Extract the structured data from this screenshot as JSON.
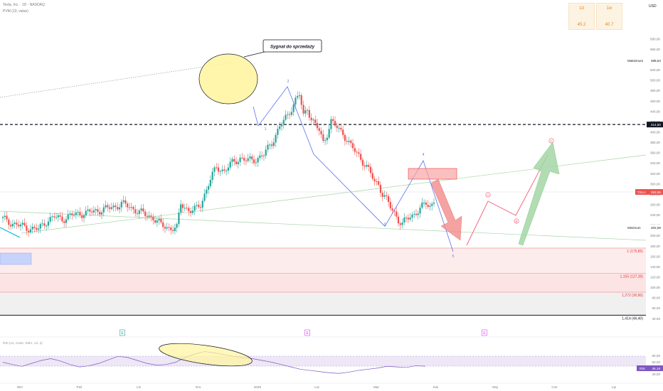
{
  "header": {
    "symbol_line": "Tesla, Inc. · 1D · NASDAQ",
    "indicator_line": "PVM (13, value)",
    "currency": "USD"
  },
  "performance": [
    {
      "period": "1d",
      "sep": "-",
      "value": "45.2"
    },
    {
      "period": "1w",
      "sep": "-",
      "value": "40.7"
    }
  ],
  "annotations": {
    "sell_signal": "Sygnał do sprzedaży",
    "wave_labels": [
      "1",
      "2",
      "3",
      "4",
      "5"
    ],
    "abc_labels": [
      "A",
      "B",
      "C"
    ],
    "event_badges": [
      "E",
      "E",
      "E"
    ]
  },
  "price_tags": {
    "maximum_label": "Maksimum",
    "maximum_value": "488,54",
    "minimum_label": "Minimum",
    "minimum_value": "202,59",
    "level_value": "414,50",
    "ticker": "TSLA",
    "last_value": "263,55"
  },
  "fib_levels": [
    {
      "label": "1 (175,85)",
      "price": 175.85
    },
    {
      "label": "1,155 (127,39)",
      "price": 127.39
    },
    {
      "label": "1,272 (90,80)",
      "price": 90.8
    },
    {
      "label": "1,414 (46,40)",
      "price": 46.4
    }
  ],
  "rsi": {
    "title": "RSI (14, close, SMA, 14, 2)",
    "tag": "RSI",
    "value": "45,19",
    "upper_band": 70,
    "lower_band": 30,
    "ticks": [
      "80,00",
      "60,00",
      "40,00"
    ]
  },
  "x_axis": [
    "Wrz",
    "Paź",
    "Lis",
    "Gru",
    "2025",
    "Lut",
    "Mar",
    "Kwi",
    "Maj",
    "Cze",
    "Lip"
  ],
  "y_axis_ticks": [
    "580,00",
    "560,00",
    "540,00",
    "520,00",
    "500,00",
    "480,00",
    "460,00",
    "440,00",
    "420,00",
    "400,00",
    "380,00",
    "360,00",
    "340,00",
    "320,00",
    "300,00",
    "280,00",
    "260,00",
    "240,00",
    "220,00",
    "200,00",
    "180,00",
    "160,00",
    "140,00",
    "120,00",
    "100,00",
    "80,00",
    "60,00",
    "40,00"
  ],
  "colors": {
    "up": "#26a69a",
    "down": "#ef5350",
    "wave_line": "#5b72f2",
    "abc_line": "#f05d7a",
    "rsi_line": "#7e57c2",
    "highlight": "#fff59d"
  },
  "chart_data": {
    "type": "candlestick",
    "title": "Tesla, Inc. · 1D · NASDAQ",
    "ylim": [
      40,
      580
    ],
    "categories": [
      "Wrz",
      "Paź",
      "Lis",
      "Gru",
      "2025",
      "Lut",
      "Mar",
      "Kwi",
      "Maj",
      "Cze",
      "Lip"
    ],
    "close_path": [
      [
        0,
        232
      ],
      [
        6,
        222
      ],
      [
        12,
        215
      ],
      [
        18,
        212
      ],
      [
        22,
        228
      ],
      [
        26,
        236
      ],
      [
        30,
        232
      ],
      [
        34,
        238
      ],
      [
        38,
        242
      ],
      [
        44,
        245
      ],
      [
        50,
        250
      ],
      [
        56,
        255
      ],
      [
        60,
        262
      ],
      [
        64,
        255
      ],
      [
        68,
        248
      ],
      [
        72,
        240
      ],
      [
        76,
        235
      ],
      [
        80,
        220
      ],
      [
        84,
        215
      ],
      [
        88,
        214
      ],
      [
        90,
        262
      ],
      [
        92,
        255
      ],
      [
        94,
        250
      ],
      [
        96,
        248
      ],
      [
        98,
        252
      ],
      [
        100,
        260
      ],
      [
        104,
        300
      ],
      [
        108,
        332
      ],
      [
        112,
        325
      ],
      [
        116,
        340
      ],
      [
        120,
        350
      ],
      [
        124,
        344
      ],
      [
        128,
        348
      ],
      [
        132,
        356
      ],
      [
        136,
        380
      ],
      [
        140,
        410
      ],
      [
        144,
        432
      ],
      [
        148,
        462
      ],
      [
        150,
        472
      ],
      [
        152,
        430
      ],
      [
        154,
        448
      ],
      [
        156,
        425
      ],
      [
        160,
        402
      ],
      [
        162,
        380
      ],
      [
        164,
        398
      ],
      [
        166,
        420
      ],
      [
        168,
        412
      ],
      [
        170,
        405
      ],
      [
        172,
        398
      ],
      [
        174,
        385
      ],
      [
        176,
        372
      ],
      [
        180,
        355
      ],
      [
        184,
        332
      ],
      [
        188,
        305
      ],
      [
        190,
        300
      ],
      [
        192,
        280
      ],
      [
        194,
        268
      ],
      [
        196,
        255
      ],
      [
        198,
        245
      ],
      [
        200,
        230
      ],
      [
        202,
        222
      ],
      [
        204,
        230
      ],
      [
        206,
        238
      ],
      [
        208,
        242
      ],
      [
        210,
        248
      ],
      [
        212,
        255
      ],
      [
        214,
        262
      ],
      [
        216,
        258
      ],
      [
        218,
        263.55
      ]
    ],
    "waves": {
      "1": [
        363,
        412
      ],
      "2": [
        428,
        448
      ],
      "3": [
        440,
        218
      ],
      "4": [
        493,
        320
      ],
      "5": [
        546,
        165
      ]
    },
    "projection": {
      "A": 270,
      "B": 230,
      "C": 340
    },
    "rsi_values": [
      52,
      48,
      45,
      50,
      55,
      58,
      54,
      48,
      44,
      46,
      50,
      56,
      62,
      60,
      55,
      50,
      47,
      48,
      52,
      60,
      66,
      70,
      68,
      65,
      62,
      60,
      58,
      55,
      52,
      48,
      44,
      40,
      38,
      36,
      34,
      33,
      35,
      38,
      40,
      42,
      45,
      44,
      43,
      46,
      45.19
    ]
  }
}
